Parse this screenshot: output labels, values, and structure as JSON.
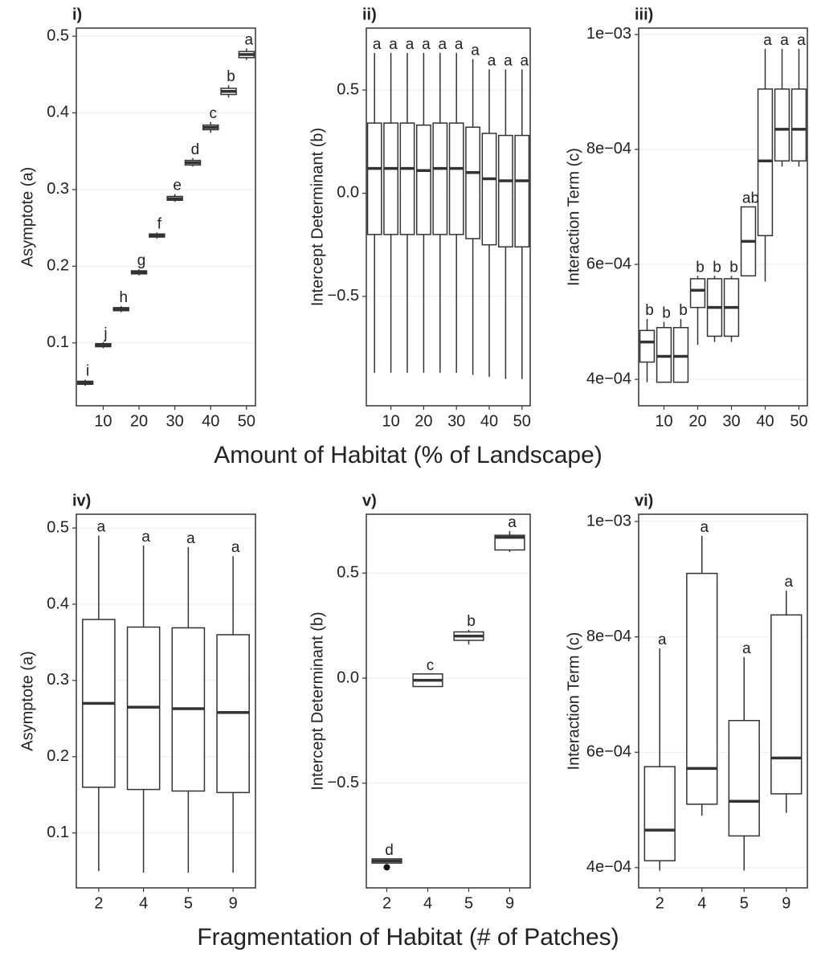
{
  "chart_data": [
    {
      "type": "box",
      "panel_label": "i)",
      "y_label": "Asymptote (a)",
      "categories": [
        null,
        10,
        null,
        20,
        null,
        30,
        null,
        40,
        null,
        50
      ],
      "whislo": [
        0.044,
        0.093,
        0.14,
        0.188,
        0.236,
        0.284,
        0.33,
        0.374,
        0.42,
        0.469
      ],
      "q1": [
        0.046,
        0.095,
        0.142,
        0.19,
        0.238,
        0.286,
        0.332,
        0.378,
        0.424,
        0.472
      ],
      "med": [
        0.048,
        0.097,
        0.144,
        0.192,
        0.24,
        0.288,
        0.335,
        0.381,
        0.428,
        0.476
      ],
      "q3": [
        0.05,
        0.099,
        0.146,
        0.194,
        0.242,
        0.291,
        0.338,
        0.384,
        0.432,
        0.48
      ],
      "whishi": [
        0.052,
        0.101,
        0.148,
        0.196,
        0.244,
        0.294,
        0.341,
        0.388,
        0.436,
        0.484
      ],
      "letters": [
        "i",
        "j",
        "h",
        "g",
        "f",
        "e",
        "d",
        "c",
        "b",
        "a"
      ],
      "ylim": [
        0.018,
        0.5105
      ],
      "yticks": [
        0.1,
        0.2,
        0.3,
        0.4,
        0.5
      ],
      "grid": true
    },
    {
      "type": "box",
      "panel_label": "ii)",
      "y_label": "Intercept  Determinant (b)",
      "categories": [
        null,
        10,
        null,
        20,
        null,
        30,
        null,
        40,
        null,
        50
      ],
      "whislo": [
        -0.87,
        -0.87,
        -0.87,
        -0.87,
        -0.87,
        -0.87,
        -0.88,
        -0.89,
        -0.9,
        -0.9
      ],
      "q1": [
        -0.2,
        -0.2,
        -0.2,
        -0.2,
        -0.2,
        -0.2,
        -0.22,
        -0.25,
        -0.26,
        -0.26
      ],
      "med": [
        0.12,
        0.12,
        0.12,
        0.11,
        0.12,
        0.12,
        0.1,
        0.07,
        0.06,
        0.06
      ],
      "q3": [
        0.34,
        0.34,
        0.34,
        0.33,
        0.34,
        0.34,
        0.32,
        0.29,
        0.28,
        0.28
      ],
      "whishi": [
        0.68,
        0.68,
        0.68,
        0.68,
        0.68,
        0.68,
        0.65,
        0.6,
        0.6,
        0.6
      ],
      "letters": [
        "a",
        "a",
        "a",
        "a",
        "a",
        "a",
        "a",
        "a",
        "a",
        "a"
      ],
      "ylim": [
        -1.03,
        0.8
      ],
      "yticks": [
        {
          "value": -0.5,
          "label": "−0.5"
        },
        {
          "value": 0,
          "label": "0.0"
        },
        0.5
      ],
      "grid": true
    },
    {
      "type": "box",
      "panel_label": "iii)",
      "y_label": "Interaction Term (c)",
      "categories": [
        null,
        10,
        null,
        20,
        null,
        30,
        null,
        40,
        null,
        50
      ],
      "whislo": [
        0.000395,
        0.000395,
        0.000395,
        0.00046,
        0.000465,
        0.000465,
        0.00058,
        0.00057,
        0.00077,
        0.00077
      ],
      "q1": [
        0.00043,
        0.000395,
        0.000395,
        0.000525,
        0.000475,
        0.000475,
        0.00058,
        0.00065,
        0.00078,
        0.00078
      ],
      "med": [
        0.000465,
        0.00044,
        0.00044,
        0.000555,
        0.000525,
        0.000525,
        0.00064,
        0.00078,
        0.000835,
        0.000835
      ],
      "q3": [
        0.000485,
        0.00049,
        0.00049,
        0.000575,
        0.000575,
        0.000575,
        0.0007,
        0.000905,
        0.000905,
        0.000905
      ],
      "whishi": [
        0.000505,
        0.0005,
        0.000505,
        0.00058,
        0.00058,
        0.00058,
        0.0007,
        0.000975,
        0.000975,
        0.000975
      ],
      "letters": [
        "b",
        "b",
        "b",
        "b",
        "b",
        "b",
        "ab",
        "a",
        "a",
        "a"
      ],
      "ylim": [
        0.000354,
        0.001011
      ],
      "yticks": [
        {
          "value": 0.0004,
          "label": "4e−04"
        },
        {
          "value": 0.0006,
          "label": "6e−04"
        },
        {
          "value": 0.0008,
          "label": "8e−04"
        },
        {
          "value": 0.001,
          "label": "1e−03"
        }
      ],
      "grid": true
    },
    {
      "type": "box",
      "panel_label": "iv)",
      "y_label": "Asymptote (a)",
      "categories": [
        2,
        4,
        5,
        9
      ],
      "whislo": [
        0.05,
        0.048,
        0.048,
        0.048
      ],
      "q1": [
        0.16,
        0.157,
        0.155,
        0.153
      ],
      "med": [
        0.27,
        0.265,
        0.263,
        0.258
      ],
      "q3": [
        0.38,
        0.37,
        0.369,
        0.36
      ],
      "whishi": [
        0.49,
        0.477,
        0.475,
        0.463
      ],
      "letters": [
        "a",
        "a",
        "a",
        "a"
      ],
      "ylim": [
        0.028,
        0.518
      ],
      "yticks": [
        0.1,
        0.2,
        0.3,
        0.4,
        0.5
      ],
      "grid": true
    },
    {
      "type": "box",
      "panel_label": "v)",
      "y_label": "Intercept Determinant (b)",
      "categories": [
        2,
        4,
        5,
        9
      ],
      "whislo": [
        -0.88,
        -0.04,
        0.16,
        0.6
      ],
      "q1": [
        -0.88,
        -0.04,
        0.18,
        0.61
      ],
      "med": [
        -0.87,
        -0.01,
        0.2,
        0.67
      ],
      "q3": [
        -0.86,
        0.02,
        0.22,
        0.68
      ],
      "whishi": [
        -0.86,
        0.02,
        0.23,
        0.7
      ],
      "outliers": [
        [
          -0.9
        ],
        [],
        [],
        []
      ],
      "letters": [
        "d",
        "c",
        "b",
        "a"
      ],
      "ylim": [
        -0.998,
        0.78
      ],
      "yticks": [
        {
          "value": -0.5,
          "label": "−0.5"
        },
        {
          "value": 0,
          "label": "0.0"
        },
        0.5
      ],
      "grid": true
    },
    {
      "type": "box",
      "panel_label": "vi)",
      "y_label": "Interaction Term (c)",
      "categories": [
        2,
        4,
        5,
        9
      ],
      "whislo": [
        0.000395,
        0.00049,
        0.000395,
        0.000495
      ],
      "q1": [
        0.000412,
        0.00051,
        0.000455,
        0.000528
      ],
      "med": [
        0.000465,
        0.000572,
        0.000515,
        0.00059
      ],
      "q3": [
        0.000575,
        0.00091,
        0.000655,
        0.000838
      ],
      "whishi": [
        0.00078,
        0.000975,
        0.000765,
        0.00088
      ],
      "letters": [
        "a",
        "a",
        "a",
        "a"
      ],
      "ylim": [
        0.000365,
        0.0010125
      ],
      "yticks": [
        {
          "value": 0.0004,
          "label": "4e−04"
        },
        {
          "value": 0.0006,
          "label": "6e−04"
        },
        {
          "value": 0.0008,
          "label": "8e−04"
        },
        {
          "value": 0.001,
          "label": "1e−03"
        }
      ],
      "grid": true
    }
  ],
  "shared_x_labels": [
    "Amount of Habitat (% of Landscape)",
    "Fragmentation of Habitat (# of Patches)"
  ]
}
